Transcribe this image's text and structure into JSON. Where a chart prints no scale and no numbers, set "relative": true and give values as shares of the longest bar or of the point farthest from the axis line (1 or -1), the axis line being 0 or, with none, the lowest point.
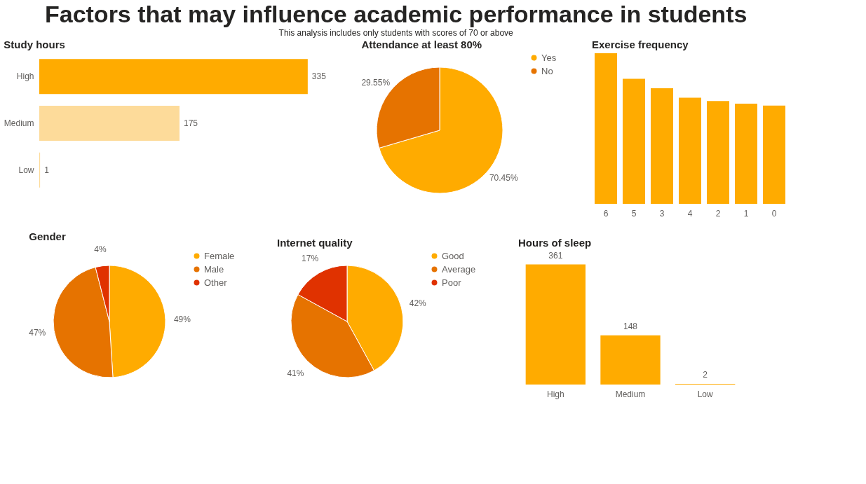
{
  "chart_data": [
    {
      "type": "other",
      "title": "Factors that may influence academic performance in students",
      "subtitle": "This analysis includes only students with scores of 70 or above"
    },
    {
      "type": "bar",
      "title": "Study hours",
      "orientation": "horizontal",
      "categories": [
        "High",
        "Medium",
        "Low"
      ],
      "values": [
        335,
        175,
        1
      ],
      "colors": [
        "#ffab00",
        "#fddb9a",
        "#fddb9a"
      ],
      "data_labels": true
    },
    {
      "type": "pie",
      "title": "Attendance at least 80%",
      "categories": [
        "Yes",
        "No"
      ],
      "values": [
        70.45,
        29.55
      ],
      "colors": [
        "#ffab00",
        "#e67300"
      ],
      "value_labels": [
        "70.45%",
        "29.55%"
      ],
      "legend": "right"
    },
    {
      "type": "bar",
      "title": "Exercise frequency",
      "relative": true,
      "categories": [
        "6",
        "5",
        "3",
        "4",
        "2",
        "1",
        "0"
      ],
      "values": [
        1,
        0.83,
        0.768,
        0.705,
        0.683,
        0.665,
        0.652
      ],
      "color": "#ffab00"
    },
    {
      "type": "pie",
      "title": "Gender",
      "categories": [
        "Female",
        "Male",
        "Other"
      ],
      "values": [
        49,
        47,
        4
      ],
      "colors": [
        "#ffab00",
        "#e67300",
        "#e03200"
      ],
      "value_labels": [
        "49%",
        "47%",
        "4%"
      ],
      "legend": "right"
    },
    {
      "type": "pie",
      "title": "Internet quality",
      "categories": [
        "Good",
        "Average",
        "Poor"
      ],
      "values": [
        42,
        41,
        17
      ],
      "colors": [
        "#ffab00",
        "#e67300",
        "#e03200"
      ],
      "value_labels": [
        "42%",
        "41%",
        "17%"
      ],
      "legend": "right"
    },
    {
      "type": "bar",
      "title": "Hours of sleep",
      "categories": [
        "High",
        "Medium",
        "Low"
      ],
      "values": [
        361,
        148,
        2
      ],
      "color": "#ffab00",
      "data_labels": true
    }
  ]
}
